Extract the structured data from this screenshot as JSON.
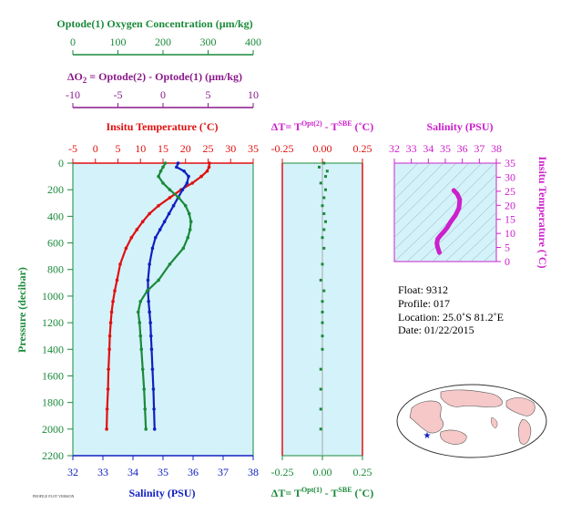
{
  "colors": {
    "oxygen": "#1a8a3a",
    "delta_o2": "#8a1a8a",
    "temperature": "#e01010",
    "salinity": "#1020c0",
    "magenta": "#cc20cc",
    "panel_bg": "#d4f2fa",
    "pressure_axis": "#1a8a3a"
  },
  "labels": {
    "oxygen_title": "Optode(1) Oxygen Concentration (µm/kg)",
    "delta_o2_title": "ΔO",
    "delta_o2_sub": "2",
    "delta_o2_rest": " = Optode(2) - Optode(1)    (µm/kg)",
    "temp_title": "Insitu Temperature (˚C)",
    "dt_top_a": "ΔT= T",
    "dt_top_sup": "Opt(2)",
    "dt_top_b": " - T",
    "dt_top_sup2": "SBE",
    "dt_top_c": " (˚C)",
    "dt_bot_a": "ΔT= T",
    "dt_bot_sup": "Opt(1)",
    "dt_bot_b": " - T",
    "dt_bot_sup2": "SBE",
    "dt_bot_c": " (˚C)",
    "salinity_top": "Salinity (PSU)",
    "salinity_bottom": "Salinity (PSU)",
    "pressure": "Pressure (decibar)",
    "insitu_temp_right": "Insitu Temperature (˚C)",
    "stamp": "PROFILE PLOT VERSION"
  },
  "float_info": {
    "float": "Float:  9312",
    "profile": "Profile:  017",
    "location": "Location:  25.0˚S  81.2˚E",
    "date": "Date:  01/22/2015"
  },
  "axes": {
    "oxygen_ticks": [
      "0",
      "100",
      "200",
      "300",
      "400"
    ],
    "delta_o2_ticks": [
      "-10",
      "-5",
      "0",
      "5",
      "10"
    ],
    "temp_ticks": [
      "-5",
      "0",
      "5",
      "10",
      "15",
      "20",
      "25",
      "30",
      "35"
    ],
    "salinity_ticks": [
      "32",
      "33",
      "34",
      "35",
      "36",
      "37",
      "38"
    ],
    "pressure_ticks": [
      "0",
      "200",
      "400",
      "600",
      "800",
      "1000",
      "1200",
      "1400",
      "1600",
      "1800",
      "2000",
      "2200"
    ],
    "dt_ticks": [
      "-0.25",
      "0.00",
      "0.25"
    ],
    "ts_sal_ticks": [
      "32",
      "33",
      "34",
      "35",
      "36",
      "37",
      "38"
    ],
    "ts_temp_ticks": [
      "0",
      "5",
      "10",
      "15",
      "20",
      "25",
      "30",
      "35"
    ]
  },
  "chart_data": [
    {
      "type": "line",
      "title": "",
      "ylabel": "Pressure (decibar)",
      "ylim": [
        2200,
        0
      ],
      "series": [
        {
          "name": "Insitu Temperature (˚C)",
          "xlim": [
            -5,
            35
          ],
          "x": [
            25.3,
            25.2,
            24.8,
            23.5,
            21.5,
            19.0,
            16.5,
            14.0,
            12.0,
            10.5,
            9.2,
            8.0,
            6.8,
            5.5,
            4.8,
            4.3,
            3.9,
            3.6,
            3.4,
            3.2,
            3.1,
            2.9,
            2.8,
            2.6,
            2.5
          ],
          "y": [
            0,
            30,
            60,
            100,
            150,
            200,
            260,
            320,
            380,
            440,
            500,
            560,
            640,
            760,
            880,
            960,
            1040,
            1120,
            1200,
            1300,
            1400,
            1550,
            1700,
            1850,
            2000
          ]
        },
        {
          "name": "Salinity (PSU)",
          "xlim": [
            32,
            38
          ],
          "x": [
            35.5,
            35.45,
            35.7,
            35.85,
            35.8,
            35.65,
            35.5,
            35.35,
            35.2,
            35.05,
            34.9,
            34.75,
            34.65,
            34.55,
            34.5,
            34.5,
            34.52,
            34.55,
            34.58,
            34.6,
            34.62,
            34.65,
            34.68,
            34.7,
            34.72
          ],
          "y": [
            0,
            30,
            60,
            100,
            150,
            200,
            260,
            320,
            380,
            440,
            500,
            560,
            640,
            760,
            880,
            960,
            1040,
            1120,
            1200,
            1300,
            1400,
            1550,
            1700,
            1850,
            2000
          ]
        },
        {
          "name": "Optode(1) Oxygen Concentration (µm/kg)",
          "xlim": [
            0,
            400
          ],
          "x": [
            205,
            200,
            195,
            190,
            200,
            215,
            235,
            250,
            258,
            262,
            260,
            255,
            245,
            215,
            190,
            165,
            150,
            145,
            148,
            150,
            152,
            155,
            158,
            160,
            162
          ],
          "y": [
            0,
            30,
            60,
            100,
            150,
            200,
            260,
            320,
            380,
            440,
            500,
            560,
            640,
            760,
            880,
            960,
            1040,
            1120,
            1200,
            1300,
            1400,
            1550,
            1700,
            1850,
            2000
          ]
        }
      ]
    },
    {
      "type": "scatter",
      "title": "",
      "xlabel": "ΔT= T Opt(1) - T SBE (˚C)",
      "xlim": [
        -0.25,
        0.25
      ],
      "ylim": [
        2200,
        0
      ],
      "series": [
        {
          "name": "ΔT",
          "x": [
            0.01,
            -0.02,
            0.03,
            0.02,
            -0.01,
            0.02,
            0.01,
            0.0,
            0.01,
            0.02,
            0.01,
            0.0,
            0.01,
            0.0,
            -0.01,
            0.01,
            0.0,
            0.0,
            0.0,
            0.0,
            0.0,
            -0.01,
            -0.01,
            -0.01,
            -0.01
          ],
          "y": [
            0,
            30,
            60,
            100,
            150,
            200,
            260,
            320,
            380,
            440,
            500,
            560,
            640,
            760,
            880,
            960,
            1040,
            1120,
            1200,
            1300,
            1400,
            1550,
            1700,
            1850,
            2000
          ]
        }
      ]
    },
    {
      "type": "line",
      "title": "",
      "xlabel": "Salinity (PSU)",
      "ylabel": "Insitu Temperature (˚C)",
      "xlim": [
        32,
        38
      ],
      "ylim": [
        0,
        35
      ],
      "series": [
        {
          "name": "T-S",
          "x": [
            35.5,
            35.7,
            35.85,
            35.8,
            35.6,
            35.3,
            35.1,
            34.9,
            34.7,
            34.55,
            34.5,
            34.55,
            34.65
          ],
          "y": [
            25.3,
            24,
            22,
            19,
            16.5,
            14,
            12,
            10.5,
            9.2,
            8.0,
            6.5,
            5.0,
            3.2
          ]
        }
      ]
    }
  ]
}
